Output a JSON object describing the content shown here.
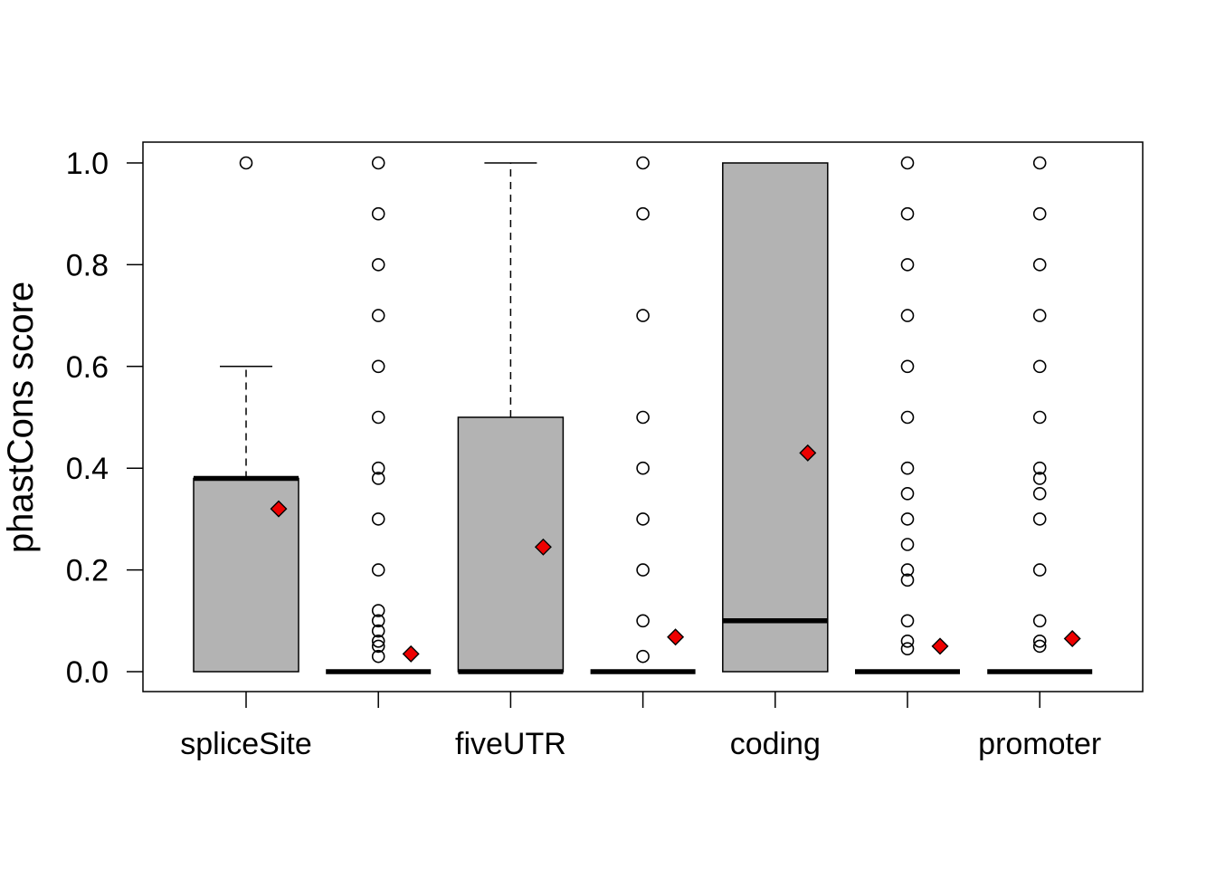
{
  "chart_data": {
    "type": "boxplot",
    "title": "",
    "xlabel": "",
    "ylabel": "phastCons score",
    "ylim": [
      0,
      1
    ],
    "y_ticks": [
      "0.0",
      "0.2",
      "0.4",
      "0.6",
      "0.8",
      "1.0"
    ],
    "categories": [
      "spliceSite",
      "",
      "fiveUTR",
      "",
      "coding",
      "",
      "promoter"
    ],
    "boxes": [
      {
        "q1": 0,
        "median": 0.38,
        "q3": 0.38,
        "whisker_low": 0,
        "whisker_high": 0.6,
        "mean": 0.32,
        "outliers": [
          1.0
        ]
      },
      {
        "q1": 0,
        "median": 0,
        "q3": 0,
        "whisker_low": 0,
        "whisker_high": 0,
        "mean": 0.035,
        "outliers": [
          1.0,
          0.9,
          0.8,
          0.7,
          0.6,
          0.5,
          0.4,
          0.38,
          0.3,
          0.2,
          0.12,
          0.1,
          0.08,
          0.06,
          0.05,
          0.03
        ]
      },
      {
        "q1": 0,
        "median": 0,
        "q3": 0.5,
        "whisker_low": 0,
        "whisker_high": 1.0,
        "mean": 0.245,
        "outliers": []
      },
      {
        "q1": 0,
        "median": 0,
        "q3": 0,
        "whisker_low": 0,
        "whisker_high": 0,
        "mean": 0.068,
        "outliers": [
          1.0,
          0.9,
          0.7,
          0.5,
          0.4,
          0.3,
          0.2,
          0.1,
          0.03
        ]
      },
      {
        "q1": 0,
        "median": 0.1,
        "q3": 1.0,
        "whisker_low": 0,
        "whisker_high": 1.0,
        "mean": 0.43,
        "outliers": []
      },
      {
        "q1": 0,
        "median": 0,
        "q3": 0,
        "whisker_low": 0,
        "whisker_high": 0,
        "mean": 0.05,
        "outliers": [
          1.0,
          0.9,
          0.8,
          0.7,
          0.6,
          0.5,
          0.4,
          0.35,
          0.3,
          0.25,
          0.2,
          0.18,
          0.1,
          0.06,
          0.045
        ]
      },
      {
        "q1": 0,
        "median": 0,
        "q3": 0,
        "whisker_low": 0,
        "whisker_high": 0,
        "mean": 0.065,
        "outliers": [
          1.0,
          0.9,
          0.8,
          0.7,
          0.6,
          0.5,
          0.4,
          0.38,
          0.35,
          0.3,
          0.2,
          0.1,
          0.06,
          0.05
        ]
      }
    ],
    "box_fill": "#b3b3b3",
    "mean_marker_color": "#ee0000",
    "grid": false,
    "legend": "none"
  }
}
